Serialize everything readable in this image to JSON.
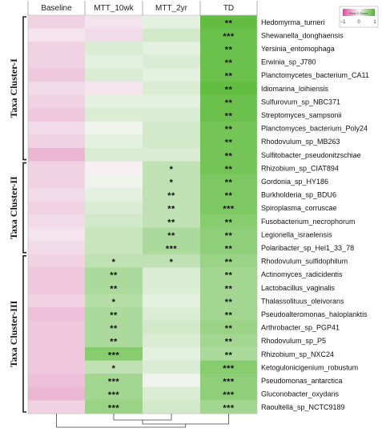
{
  "chart_data": {
    "type": "heatmap",
    "columns": [
      "Baseline",
      "MTT_10wk",
      "MTT_2yr",
      "TD"
    ],
    "rows": [
      {
        "name": "Hedomyrma_turneri",
        "z": [
          -0.4,
          -0.2,
          0.2,
          1.6
        ],
        "sig": [
          "",
          "",
          "",
          "**"
        ]
      },
      {
        "name": "Shewanella_donghaensis",
        "z": [
          -0.2,
          -0.3,
          0.4,
          1.5
        ],
        "sig": [
          "",
          "",
          "",
          "***"
        ]
      },
      {
        "name": "Yersinia_entomophaga",
        "z": [
          -0.4,
          0.3,
          0.2,
          1.5
        ],
        "sig": [
          "",
          "",
          "",
          "**"
        ]
      },
      {
        "name": "Erwinia_sp_J780",
        "z": [
          -0.4,
          0.2,
          0.3,
          1.5
        ],
        "sig": [
          "",
          "",
          "",
          "**"
        ]
      },
      {
        "name": "Planctomycetes_bacterium_CA11",
        "z": [
          -0.5,
          0.3,
          0.2,
          1.5
        ],
        "sig": [
          "",
          "",
          "",
          "**"
        ]
      },
      {
        "name": "Idiomarina_loihiensis",
        "z": [
          -0.3,
          -0.2,
          0.3,
          1.6
        ],
        "sig": [
          "",
          "",
          "",
          "**"
        ]
      },
      {
        "name": "Sulfurovum_sp_NBC371",
        "z": [
          -0.4,
          0.2,
          0.2,
          1.5
        ],
        "sig": [
          "",
          "",
          "",
          "**"
        ]
      },
      {
        "name": "Streptomyces_sampsonii",
        "z": [
          -0.5,
          0.3,
          0.3,
          1.5
        ],
        "sig": [
          "",
          "",
          "",
          "**"
        ]
      },
      {
        "name": "Planctomyces_bacterium_Poly24",
        "z": [
          -0.3,
          0.1,
          0.4,
          1.4
        ],
        "sig": [
          "",
          "",
          "",
          "**"
        ]
      },
      {
        "name": "Rhodovulum_sp_MB263",
        "z": [
          -0.4,
          0.2,
          0.4,
          1.4
        ],
        "sig": [
          "",
          "",
          "",
          "**"
        ]
      },
      {
        "name": "Sulfitobacter_pseudonitzschiae",
        "z": [
          -0.7,
          0.3,
          0.3,
          1.4
        ],
        "sig": [
          "",
          "",
          "",
          "**"
        ]
      },
      {
        "name": "Rhizobium_sp_CIAT894",
        "z": [
          -0.4,
          -0.1,
          0.6,
          1.4
        ],
        "sig": [
          "",
          "",
          "*",
          "**"
        ]
      },
      {
        "name": "Gordonia_sp_HY186",
        "z": [
          -0.4,
          0.1,
          0.6,
          1.3
        ],
        "sig": [
          "",
          "",
          "*",
          "**"
        ]
      },
      {
        "name": "Burkholderia_sp_BDU6",
        "z": [
          -0.3,
          0.2,
          0.6,
          1.3
        ],
        "sig": [
          "",
          "",
          "**",
          "**"
        ]
      },
      {
        "name": "Spiroplasma_corruscae",
        "z": [
          -0.4,
          0.3,
          0.6,
          1.3
        ],
        "sig": [
          "",
          "",
          "**",
          "***"
        ]
      },
      {
        "name": "Fusobacterium_necrophorum",
        "z": [
          -0.3,
          0.4,
          0.6,
          1.2
        ],
        "sig": [
          "",
          "",
          "**",
          "**"
        ]
      },
      {
        "name": "Legionella_israelensis",
        "z": [
          -0.2,
          0.5,
          0.8,
          1.1
        ],
        "sig": [
          "",
          "",
          "**",
          "**"
        ]
      },
      {
        "name": "Polaribacter_sp_Hel1_33_78",
        "z": [
          -0.3,
          0.5,
          0.8,
          1.1
        ],
        "sig": [
          "",
          "",
          "***",
          "**"
        ]
      },
      {
        "name": "Rhodovulum_sulfidophilum",
        "z": [
          -0.4,
          0.6,
          0.6,
          1.0
        ],
        "sig": [
          "",
          "*",
          "*",
          "**"
        ]
      },
      {
        "name": "Actinomyces_radicidentis",
        "z": [
          -0.5,
          0.8,
          0.3,
          0.9
        ],
        "sig": [
          "",
          "**",
          "",
          "**"
        ]
      },
      {
        "name": "Lactobacillus_vaginalis",
        "z": [
          -0.5,
          0.8,
          0.3,
          0.9
        ],
        "sig": [
          "",
          "**",
          "",
          "**"
        ]
      },
      {
        "name": "Thalassolituus_oleivorans",
        "z": [
          -0.4,
          0.7,
          0.2,
          0.9
        ],
        "sig": [
          "",
          "*",
          "",
          "**"
        ]
      },
      {
        "name": "Pseudoalteromonas_haloplanktis",
        "z": [
          -0.6,
          0.8,
          0.3,
          0.9
        ],
        "sig": [
          "",
          "**",
          "",
          "**"
        ]
      },
      {
        "name": "Arthrobacter_sp_PGP41",
        "z": [
          -0.5,
          0.8,
          0.4,
          1.0
        ],
        "sig": [
          "",
          "**",
          "",
          "**"
        ]
      },
      {
        "name": "Rhodovulum_sp_P5",
        "z": [
          -0.5,
          0.8,
          0.3,
          0.9
        ],
        "sig": [
          "",
          "**",
          "",
          "**"
        ]
      },
      {
        "name": "Rhizobium_sp_NXC24",
        "z": [
          -0.5,
          1.2,
          0.2,
          0.8
        ],
        "sig": [
          "",
          "***",
          "",
          "**"
        ]
      },
      {
        "name": "Ketogulonicigenium_robustum",
        "z": [
          -0.5,
          0.6,
          0.3,
          1.2
        ],
        "sig": [
          "",
          "*",
          "",
          "***"
        ]
      },
      {
        "name": "Pseudomonas_antarctica",
        "z": [
          -0.6,
          0.9,
          0.1,
          1.1
        ],
        "sig": [
          "",
          "***",
          "",
          "***"
        ]
      },
      {
        "name": "Gluconobacter_oxydans",
        "z": [
          -0.7,
          0.9,
          0.3,
          1.1
        ],
        "sig": [
          "",
          "***",
          "",
          "***"
        ]
      },
      {
        "name": "Raoultella_sp_NCTC9189",
        "z": [
          -0.4,
          1.0,
          0.4,
          0.9
        ],
        "sig": [
          "",
          "***",
          "",
          "***"
        ]
      }
    ],
    "clusters": [
      {
        "label": "Taxa Cluster-I",
        "from_row": 0,
        "to_row": 10
      },
      {
        "label": "Taxa Cluster-II",
        "from_row": 11,
        "to_row": 17
      },
      {
        "label": "Taxa Cluster-III",
        "from_row": 18,
        "to_row": 29
      }
    ],
    "legend": {
      "title": "Row Z-Score",
      "ticks": [
        -1,
        0,
        1
      ],
      "position": "top-right"
    },
    "color_scale": {
      "low": "#d94f9a",
      "mid": "#f7f7f7",
      "high": "#4fb62a"
    }
  }
}
